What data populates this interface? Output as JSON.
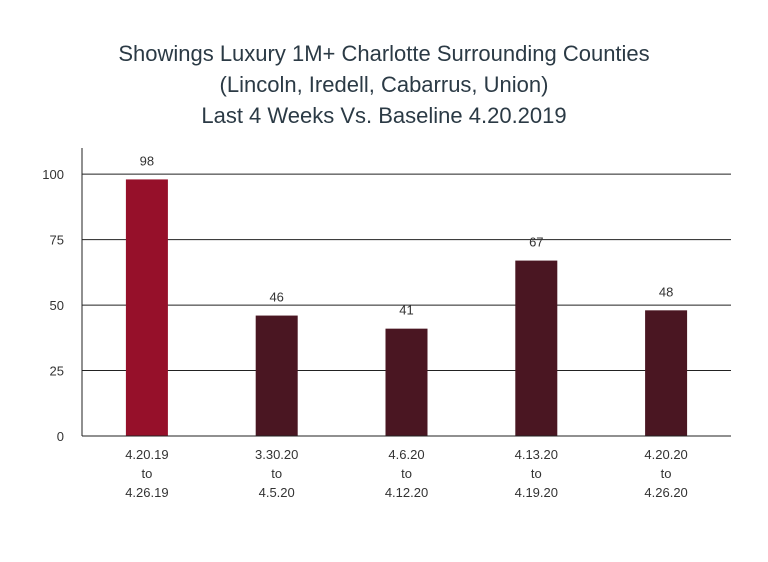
{
  "chart_data": {
    "type": "bar",
    "title_lines": [
      "Showings Luxury 1M+ Charlotte Surrounding Counties",
      "(Lincoln, Iredell, Cabarrus, Union)",
      "Last 4 Weeks Vs. Baseline 4.20.2019"
    ],
    "categories": [
      [
        "4.20.19",
        "to",
        "4.26.19"
      ],
      [
        "3.30.20",
        "to",
        "4.5.20"
      ],
      [
        "4.6.20",
        "to",
        "4.12.20"
      ],
      [
        "4.13.20",
        "to",
        "4.19.20"
      ],
      [
        "4.20.20",
        "to",
        "4.26.20"
      ]
    ],
    "values": [
      98,
      46,
      41,
      67,
      48
    ],
    "bar_colors": [
      "#96102a",
      "#4a1622",
      "#4a1622",
      "#4a1622",
      "#4a1622"
    ],
    "yticks": [
      0,
      25,
      50,
      75,
      100
    ],
    "ylim": [
      0,
      110
    ],
    "grid": true,
    "xlabel": "",
    "ylabel": ""
  }
}
